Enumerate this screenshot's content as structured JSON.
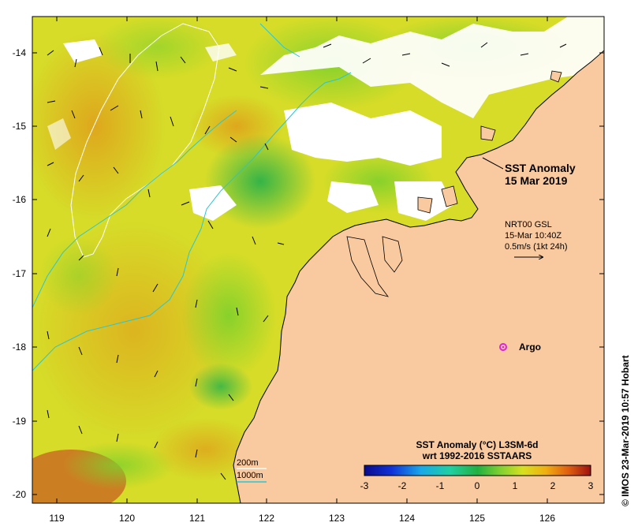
{
  "map": {
    "title_line1": "SST Anomaly",
    "title_line2": "15 Mar 2019",
    "current_info": {
      "line1": "NRT00 GSL",
      "line2": "15-Mar 10:40Z",
      "line3": "0.5m/s (1kt 24h)"
    },
    "argo_label": "Argo",
    "contours": {
      "c200": "200m",
      "c1000": "1000m"
    },
    "x_ticks": [
      "119",
      "120",
      "121",
      "122",
      "123",
      "124",
      "125",
      "126"
    ],
    "y_ticks": [
      "-14",
      "-15",
      "-16",
      "-17",
      "-18",
      "-19",
      "-20"
    ],
    "colorbar": {
      "title_line1": "SST Anomaly (°C) L3SM-6d",
      "title_line2": "wrt 1992-2016 SSTAARS",
      "ticks": [
        "-3",
        "-2",
        "-1",
        "0",
        "1",
        "2",
        "3"
      ]
    },
    "credit": "© IMOS 23-Mar-2019 10:57 Hobart",
    "colors": {
      "land": "#f9c9a0",
      "anomaly_warm": "#e7c021",
      "anomaly_neutral": "#9ad82c",
      "anomaly_cool": "#1fb84a",
      "contour_200": "#ffffff",
      "contour_1000": "#29c6d6",
      "argo": "#e020e0"
    }
  }
}
